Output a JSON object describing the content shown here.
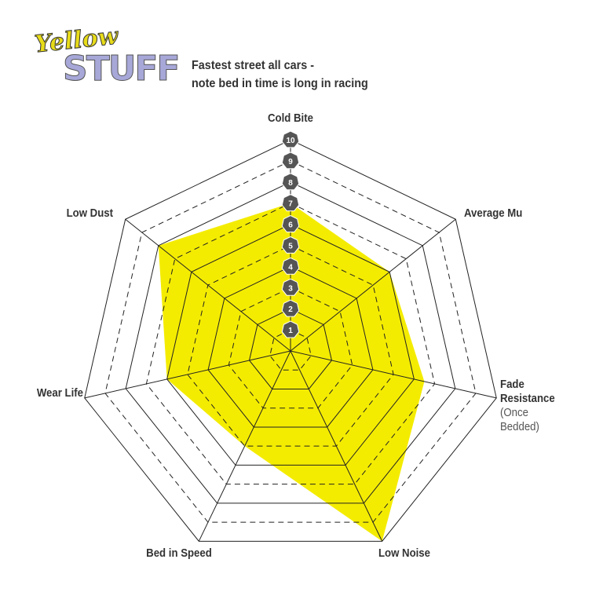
{
  "logo": {
    "top": "Yellow",
    "bottom": "STUFF"
  },
  "chart_data": {
    "type": "radar",
    "title": [
      "Fastest street all cars -",
      "note bed in time is long in racing"
    ],
    "categories": [
      "Cold Bite",
      "Average Mu",
      "Fade Resistance",
      "Low Noise",
      "Bed in Speed",
      "Wear Life",
      "Low Dust"
    ],
    "annotations": [
      {
        "text": "(Once Bedded)",
        "category": 2
      }
    ],
    "values": [
      7,
      6,
      6.5,
      10,
      5,
      6,
      8
    ],
    "color": "#f4ec00",
    "rlim": [
      0,
      10
    ],
    "rticks": [
      1,
      2,
      3,
      4,
      5,
      6,
      7,
      8,
      9,
      10
    ],
    "grid": true
  }
}
